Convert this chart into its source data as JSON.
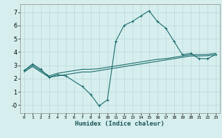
{
  "xlabel": "Humidex (Indice chaleur)",
  "background_color": "#d6eeee",
  "grid_color": "#b8d8d8",
  "line_color": "#1a6b6b",
  "x_values": [
    0,
    1,
    2,
    3,
    4,
    5,
    6,
    7,
    8,
    9,
    10,
    11,
    12,
    13,
    14,
    15,
    16,
    17,
    18,
    19,
    20,
    21,
    22,
    23
  ],
  "line1": [
    2.6,
    3.1,
    2.7,
    2.1,
    2.3,
    2.2,
    null,
    1.4,
    0.8,
    -0.05,
    0.4,
    4.8,
    6.0,
    6.3,
    6.7,
    7.1,
    6.3,
    5.8,
    4.8,
    3.8,
    3.9,
    3.5,
    3.5,
    3.8
  ],
  "line2": [
    2.6,
    3.0,
    2.6,
    2.2,
    2.4,
    2.5,
    2.6,
    2.7,
    2.7,
    2.75,
    2.85,
    2.95,
    3.05,
    3.15,
    3.25,
    3.35,
    3.45,
    3.5,
    3.6,
    3.7,
    3.8,
    3.8,
    3.82,
    3.9
  ],
  "line3": [
    2.5,
    2.9,
    2.5,
    2.1,
    2.2,
    2.3,
    2.4,
    2.5,
    2.5,
    2.6,
    2.7,
    2.8,
    2.9,
    3.0,
    3.1,
    3.2,
    3.3,
    3.4,
    3.5,
    3.6,
    3.7,
    3.7,
    3.72,
    3.8
  ],
  "ylim": [
    -0.6,
    7.6
  ],
  "xlim": [
    -0.5,
    23.5
  ],
  "yticks": [
    0,
    1,
    2,
    3,
    4,
    5,
    6,
    7
  ],
  "ytick_labels": [
    "-0",
    "1",
    "2",
    "3",
    "4",
    "5",
    "6",
    "7"
  ],
  "xticks": [
    0,
    1,
    2,
    3,
    4,
    5,
    6,
    7,
    8,
    9,
    10,
    11,
    12,
    13,
    14,
    15,
    16,
    17,
    18,
    19,
    20,
    21,
    22,
    23
  ],
  "xtick_labels": [
    "0",
    "1",
    "2",
    "3",
    "4",
    "5",
    "6",
    "7",
    "8",
    "9",
    "10",
    "11",
    "12",
    "13",
    "14",
    "15",
    "16",
    "17",
    "18",
    "19",
    "20",
    "21",
    "22",
    "23"
  ]
}
